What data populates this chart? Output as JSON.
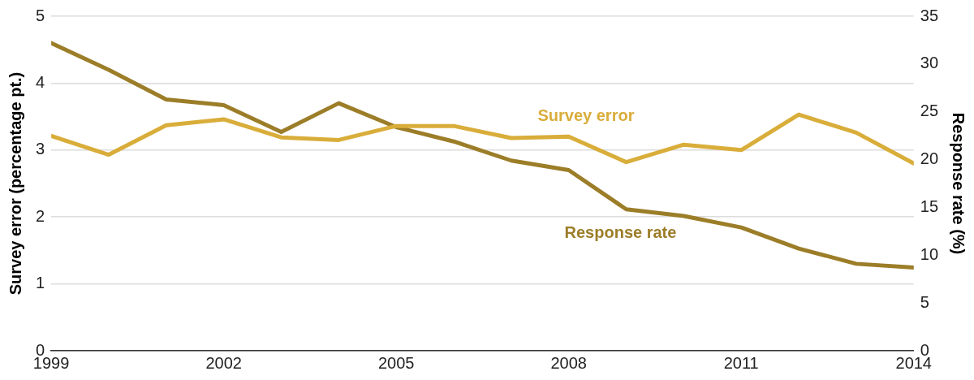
{
  "chart_data": {
    "type": "line",
    "ylabel": "Survey error (percentage pt.)",
    "y2label": "Response rate (%)",
    "x": [
      1999,
      2000,
      2001,
      2002,
      2003,
      2004,
      2005,
      2006,
      2007,
      2008,
      2009,
      2010,
      2011,
      2012,
      2013,
      2014
    ],
    "series": [
      {
        "name": "Survey error",
        "color": "#d9ad3a",
        "values": [
          3.21,
          2.93,
          3.37,
          3.46,
          3.19,
          3.15,
          3.36,
          3.36,
          3.18,
          3.2,
          2.82,
          3.08,
          3.0,
          3.53,
          3.26,
          2.8
        ]
      },
      {
        "name": "Response rate",
        "color": "#9c7d28",
        "axis": "y2",
        "values": [
          32.2,
          29.4,
          26.3,
          25.7,
          22.9,
          25.9,
          23.4,
          21.9,
          19.9,
          18.9,
          14.8,
          14.1,
          12.9,
          10.7,
          9.1,
          8.7
        ]
      }
    ],
    "xlim": [
      1999,
      2014
    ],
    "xticks": [
      1999,
      2002,
      2005,
      2008,
      2011,
      2014
    ],
    "ylim": [
      0,
      5
    ],
    "yticks": [
      0,
      1,
      2,
      3,
      4,
      5
    ],
    "y2lim": [
      0,
      35
    ],
    "y2ticks": [
      0,
      5,
      10,
      15,
      20,
      25,
      30,
      35
    ],
    "grid": "y",
    "legend": false,
    "marker": "none",
    "line_style": "solid"
  }
}
